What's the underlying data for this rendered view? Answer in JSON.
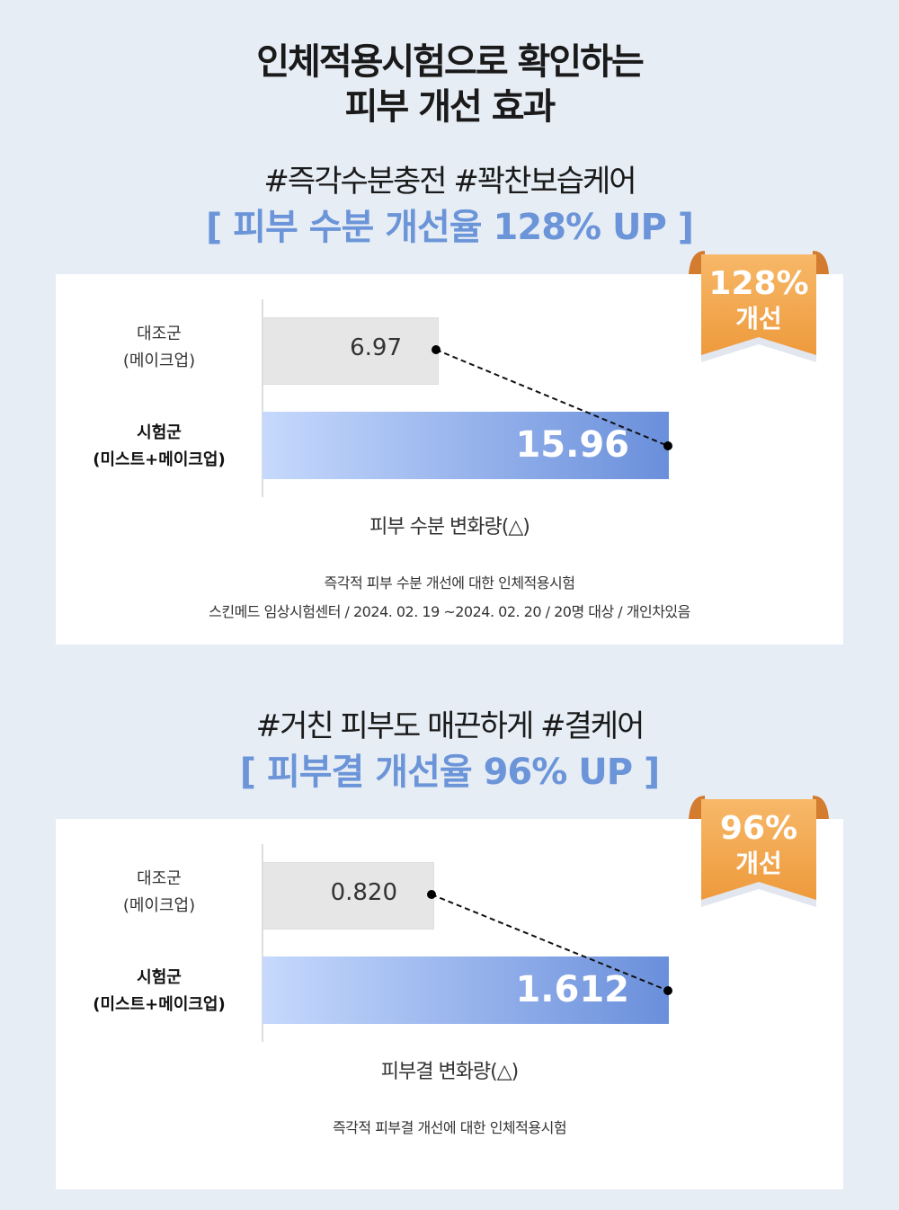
{
  "title": {
    "line1": "인체적용시험으로 확인하는",
    "line2": "피부 개선 효과"
  },
  "accent": "#6b95d8",
  "ribbon_color": "#f2a44c",
  "sections": [
    {
      "tags": "#즉각수분충전 #꽉찬보습케어",
      "highlight": "[ 피부 수분 개선율 128% UP ]",
      "badge_value": "128%",
      "badge_label": "개선",
      "control_label1": "대조군",
      "control_label2": "(메이크업)",
      "control_value": "6.97",
      "test_label1": "시험군",
      "test_label2": "(미스트+메이크업)",
      "test_value": "15.96",
      "x_label": "피부 수분 변화량(△)",
      "note1": "즉각적 피부 수분 개선에 대한 인체적용시험",
      "note2": "스킨메드 임상시험센터 / 2024. 02. 19 ~2024. 02. 20 / 20명 대상 / 개인차있음"
    },
    {
      "tags": "#거친 피부도 매끈하게 #결케어",
      "highlight": "[ 피부결 개선율 96% UP ]",
      "badge_value": "96%",
      "badge_label": "개선",
      "control_label1": "대조군",
      "control_label2": "(메이크업)",
      "control_value": "0.820",
      "test_label1": "시험군",
      "test_label2": "(미스트+메이크업)",
      "test_value": "1.612",
      "x_label": "피부결 변화량(△)",
      "note1": "즉각적 피부결 개선에 대한 인체적용시험"
    }
  ]
}
